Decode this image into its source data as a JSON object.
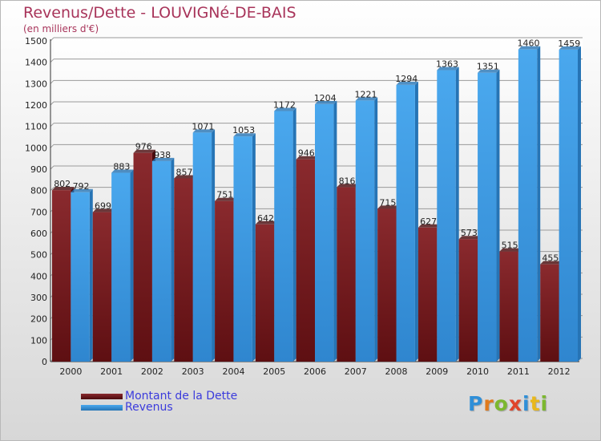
{
  "chart_data": {
    "type": "bar",
    "title": "Revenus/Dette - LOUVIGNé-DE-BAIS",
    "subtitle": "(en milliers d'€)",
    "categories": [
      "2000",
      "2001",
      "2002",
      "2003",
      "2004",
      "2005",
      "2006",
      "2007",
      "2008",
      "2009",
      "2010",
      "2011",
      "2012"
    ],
    "series": [
      {
        "name": "Montant de la Dette",
        "color": "#7a1c20",
        "values": [
          802,
          699,
          976,
          857,
          751,
          642,
          946,
          816,
          715,
          627,
          573,
          515,
          455
        ]
      },
      {
        "name": "Revenus",
        "color": "#3e9ee6",
        "values": [
          792,
          883,
          938,
          1071,
          1053,
          1172,
          1204,
          1221,
          1294,
          1363,
          1351,
          1460,
          1459
        ]
      }
    ],
    "ylim": [
      0,
      1500
    ],
    "yticks": [
      0,
      100,
      200,
      300,
      400,
      500,
      600,
      700,
      800,
      900,
      1000,
      1100,
      1200,
      1300,
      1400,
      1500
    ],
    "grid": true,
    "legend_position": "bottom-left"
  },
  "logo": {
    "letters": [
      {
        "ch": "P",
        "color": "#2f8fd8"
      },
      {
        "ch": "r",
        "color": "#e07a1c"
      },
      {
        "ch": "o",
        "color": "#7cb82f"
      },
      {
        "ch": "x",
        "color": "#e0442a"
      },
      {
        "ch": "i",
        "color": "#2f8fd8"
      },
      {
        "ch": "t",
        "color": "#e9b81c"
      },
      {
        "ch": "i",
        "color": "#7cb82f"
      }
    ]
  }
}
